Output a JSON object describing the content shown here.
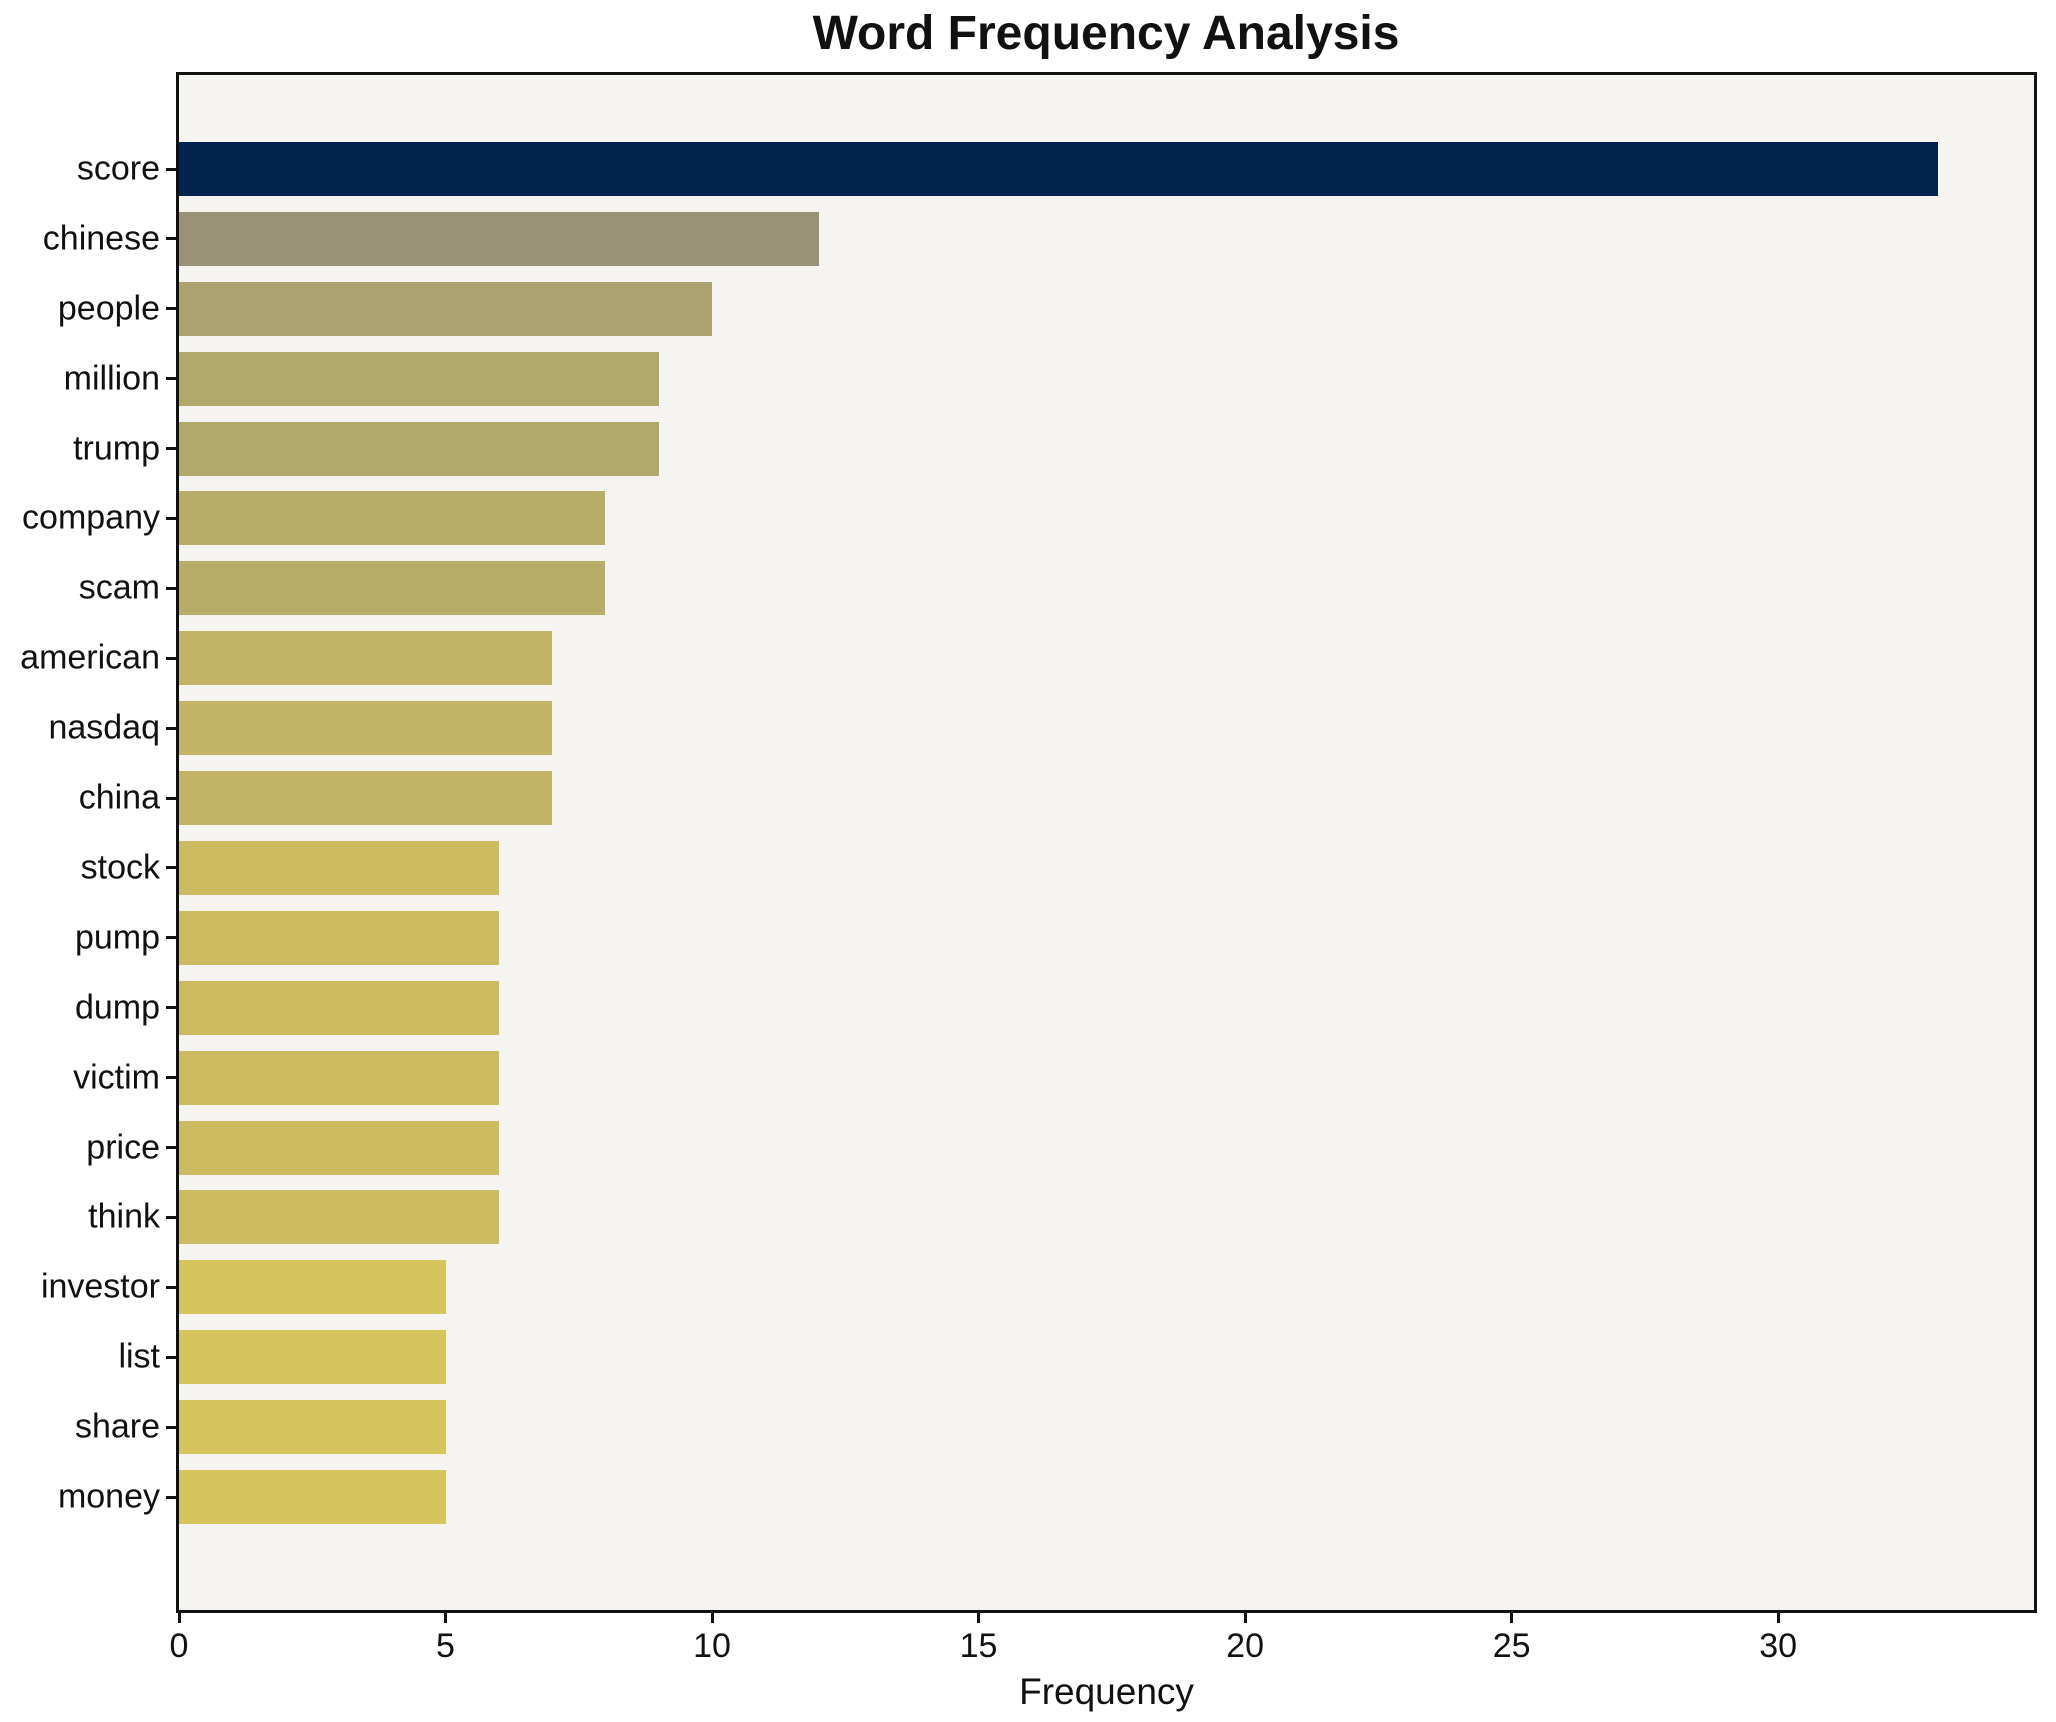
{
  "title": "Word Frequency Analysis",
  "colors": {
    "page_bg": "#ffffff",
    "plot_bg": "#f5f4f1",
    "spine": "#111111",
    "text": "#111111"
  },
  "chart_data": {
    "type": "bar",
    "orientation": "horizontal",
    "title": "Word Frequency Analysis",
    "xlabel": "Frequency",
    "ylabel": "",
    "xlim": [
      0,
      34.8
    ],
    "x_ticks": [
      0,
      5,
      10,
      15,
      20,
      25,
      30
    ],
    "grid": false,
    "legend": false,
    "categories": [
      "score",
      "chinese",
      "people",
      "million",
      "trump",
      "company",
      "scam",
      "american",
      "nasdaq",
      "china",
      "stock",
      "pump",
      "dump",
      "victim",
      "price",
      "think",
      "investor",
      "list",
      "share",
      "money"
    ],
    "values": [
      33,
      12,
      10,
      9,
      9,
      8,
      8,
      7,
      7,
      7,
      6,
      6,
      6,
      6,
      6,
      6,
      5,
      5,
      5,
      5
    ],
    "bar_colors": [
      "#02244F",
      "#9A9276",
      "#ABA26F",
      "#B2A86C",
      "#B2A86C",
      "#B8AC69",
      "#B8AC69",
      "#C4B465",
      "#C4B465",
      "#C4B465",
      "#CCBB60",
      "#CCBB60",
      "#CCBB60",
      "#CCBB60",
      "#CCBB60",
      "#CCBB60",
      "#D6C45C",
      "#D6C45C",
      "#D6C45C",
      "#D6C45C"
    ]
  }
}
